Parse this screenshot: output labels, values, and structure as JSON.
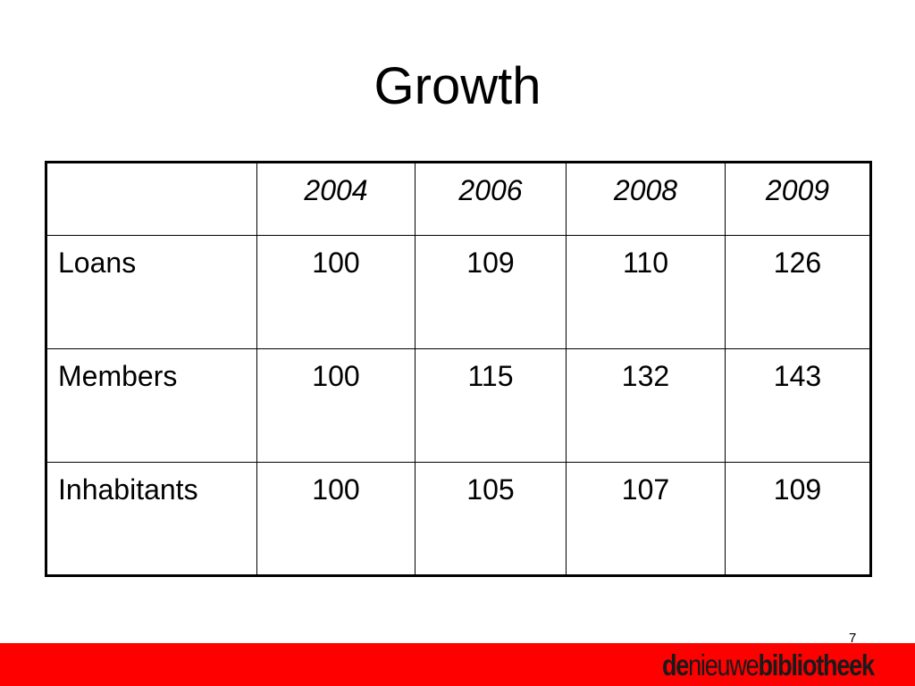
{
  "title": "Growth",
  "table": {
    "header": [
      "2004",
      "2006",
      "2008",
      "2009"
    ],
    "rows": [
      [
        "Loans",
        100,
        109,
        110,
        126
      ],
      [
        "Members",
        100,
        115,
        132,
        143
      ],
      [
        "Inhabitants",
        100,
        105,
        107,
        109
      ]
    ]
  },
  "footer": {
    "page_number": "7",
    "logo": {
      "part1": "de",
      "part2": "nieuwe",
      "part3": "bibliotheek"
    }
  }
}
